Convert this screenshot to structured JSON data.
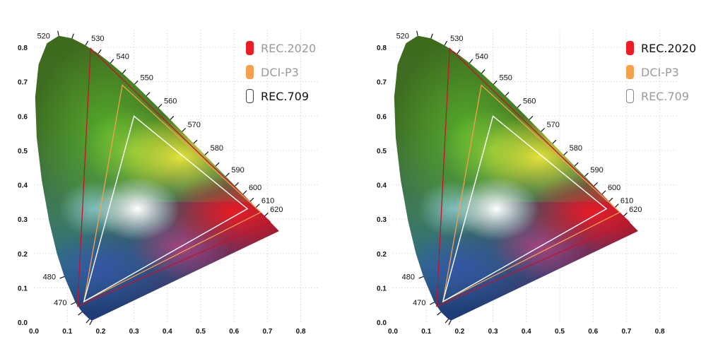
{
  "chart_data": [
    {
      "type": "scatter",
      "title": "",
      "xlabel": "",
      "ylabel": "",
      "xlim": [
        0.0,
        0.8
      ],
      "ylim": [
        0.0,
        0.8
      ],
      "grid": true,
      "legend_placement": "top-right",
      "x_ticks": [
        "0.0",
        "0.1",
        "0.2",
        "0.3",
        "0.4",
        "0.5",
        "0.6",
        "0.7",
        "0.8"
      ],
      "y_ticks": [
        "0.0",
        "0.1",
        "0.2",
        "0.3",
        "0.4",
        "0.5",
        "0.6",
        "0.7",
        "0.8"
      ],
      "wavelength_labels": [
        {
          "nm": "470",
          "x": 0.124,
          "y": 0.058
        },
        {
          "nm": "480",
          "x": 0.091,
          "y": 0.133
        },
        {
          "nm": "520",
          "x": 0.074,
          "y": 0.834
        },
        {
          "nm": "530",
          "x": 0.155,
          "y": 0.806
        },
        {
          "nm": "540",
          "x": 0.23,
          "y": 0.754
        },
        {
          "nm": "550",
          "x": 0.302,
          "y": 0.692
        },
        {
          "nm": "560",
          "x": 0.373,
          "y": 0.624
        },
        {
          "nm": "570",
          "x": 0.444,
          "y": 0.555
        },
        {
          "nm": "580",
          "x": 0.512,
          "y": 0.487
        },
        {
          "nm": "590",
          "x": 0.575,
          "y": 0.424
        },
        {
          "nm": "600",
          "x": 0.627,
          "y": 0.372
        },
        {
          "nm": "610",
          "x": 0.665,
          "y": 0.334
        },
        {
          "nm": "620",
          "x": 0.691,
          "y": 0.308
        }
      ],
      "series": [
        {
          "name": "REC.2020",
          "color": "#c8102e",
          "points": [
            [
              0.708,
              0.292
            ],
            [
              0.17,
              0.797
            ],
            [
              0.131,
              0.046
            ]
          ]
        },
        {
          "name": "DCI-P3",
          "color": "#f5a04a",
          "points": [
            [
              0.68,
              0.32
            ],
            [
              0.265,
              0.69
            ],
            [
              0.15,
              0.06
            ]
          ]
        },
        {
          "name": "REC.709",
          "color": "#ffffff",
          "points": [
            [
              0.64,
              0.33
            ],
            [
              0.3,
              0.6
            ],
            [
              0.15,
              0.06
            ]
          ]
        }
      ],
      "legend": [
        {
          "label": "REC.2020",
          "swatch": "#ee1c24",
          "filled": true,
          "active": false
        },
        {
          "label": "DCI-P3",
          "swatch": "#f5a04a",
          "filled": true,
          "active": false
        },
        {
          "label": "REC.709",
          "swatch": "#444444",
          "filled": false,
          "active": true
        }
      ]
    },
    {
      "type": "scatter",
      "title": "",
      "xlabel": "",
      "ylabel": "",
      "xlim": [
        0.0,
        0.8
      ],
      "ylim": [
        0.0,
        0.8
      ],
      "grid": true,
      "legend_placement": "top-right",
      "x_ticks": [
        "0.0",
        "0.1",
        "0.2",
        "0.3",
        "0.4",
        "0.5",
        "0.6",
        "0.7",
        "0.8"
      ],
      "y_ticks": [
        "0.0",
        "0.1",
        "0.2",
        "0.3",
        "0.4",
        "0.5",
        "0.6",
        "0.7",
        "0.8"
      ],
      "wavelength_labels": [
        {
          "nm": "470",
          "x": 0.124,
          "y": 0.058
        },
        {
          "nm": "480",
          "x": 0.091,
          "y": 0.133
        },
        {
          "nm": "520",
          "x": 0.074,
          "y": 0.834
        },
        {
          "nm": "530",
          "x": 0.155,
          "y": 0.806
        },
        {
          "nm": "540",
          "x": 0.23,
          "y": 0.754
        },
        {
          "nm": "550",
          "x": 0.302,
          "y": 0.692
        },
        {
          "nm": "560",
          "x": 0.373,
          "y": 0.624
        },
        {
          "nm": "570",
          "x": 0.444,
          "y": 0.555
        },
        {
          "nm": "580",
          "x": 0.512,
          "y": 0.487
        },
        {
          "nm": "590",
          "x": 0.575,
          "y": 0.424
        },
        {
          "nm": "600",
          "x": 0.627,
          "y": 0.372
        },
        {
          "nm": "610",
          "x": 0.665,
          "y": 0.334
        },
        {
          "nm": "620",
          "x": 0.691,
          "y": 0.308
        }
      ],
      "series": [
        {
          "name": "REC.2020",
          "color": "#c8102e",
          "points": [
            [
              0.708,
              0.292
            ],
            [
              0.17,
              0.797
            ],
            [
              0.131,
              0.046
            ]
          ]
        },
        {
          "name": "DCI-P3",
          "color": "#f5a04a",
          "points": [
            [
              0.68,
              0.32
            ],
            [
              0.265,
              0.69
            ],
            [
              0.15,
              0.06
            ]
          ]
        },
        {
          "name": "REC.709",
          "color": "#ffffff",
          "points": [
            [
              0.64,
              0.33
            ],
            [
              0.3,
              0.6
            ],
            [
              0.15,
              0.06
            ]
          ]
        }
      ],
      "legend": [
        {
          "label": "REC.2020",
          "swatch": "#ee1c24",
          "filled": true,
          "active": true
        },
        {
          "label": "DCI-P3",
          "swatch": "#f5a04a",
          "filled": true,
          "active": false
        },
        {
          "label": "REC.709",
          "swatch": "#888888",
          "filled": false,
          "active": false
        }
      ]
    }
  ]
}
